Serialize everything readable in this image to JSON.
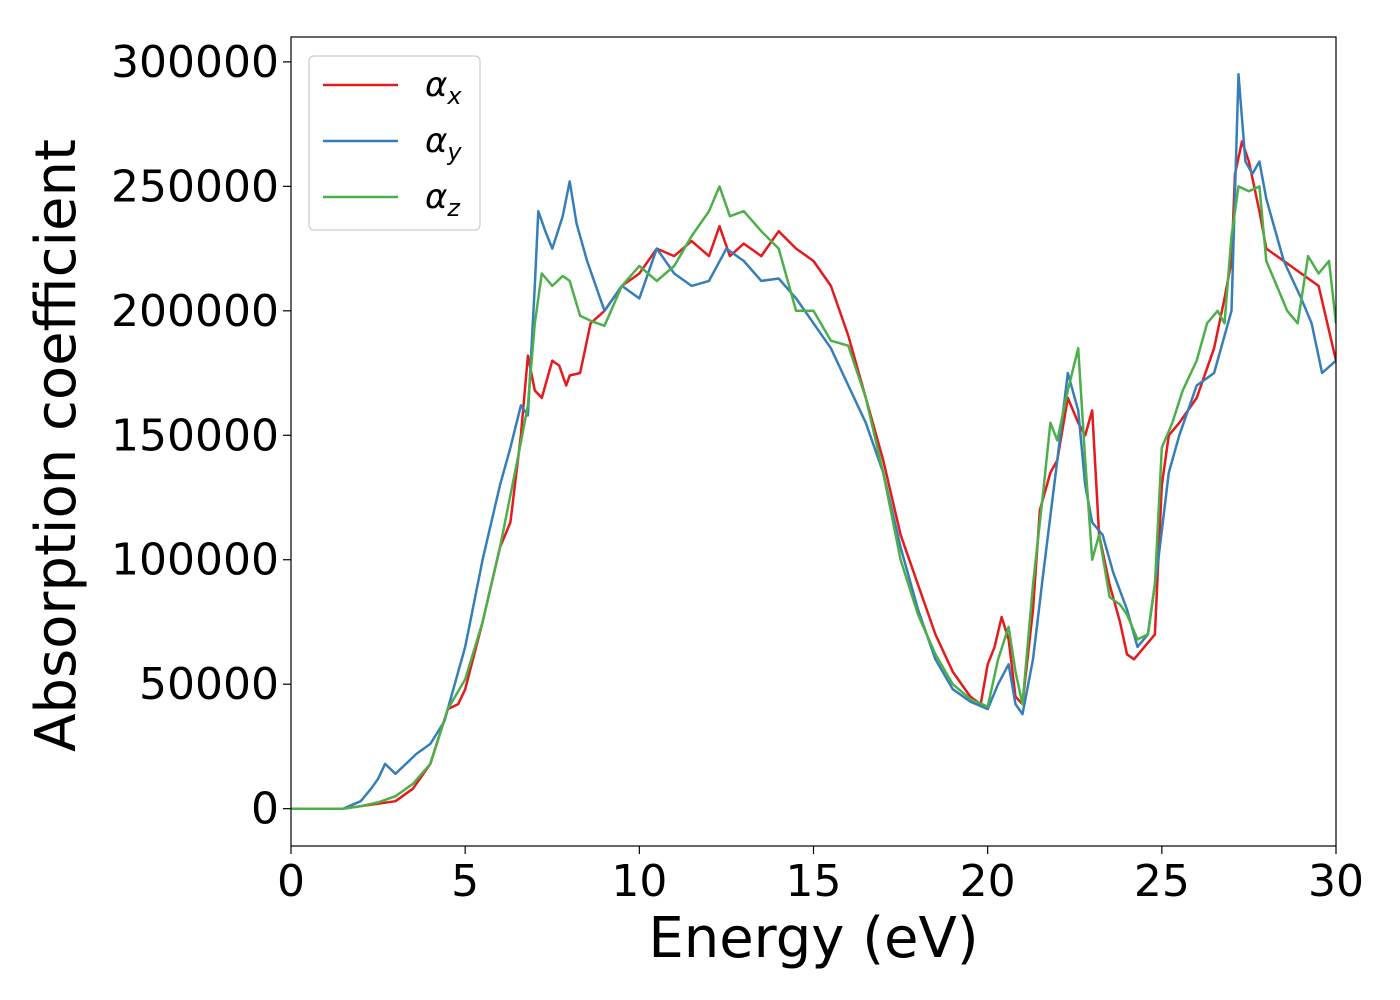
{
  "chart_data": {
    "type": "line",
    "title": "",
    "xlabel": "Energy (eV)",
    "ylabel": "Absorption coefficient",
    "xlim": [
      0,
      30
    ],
    "ylim": [
      -15000,
      310000
    ],
    "xticks": [
      0,
      5,
      10,
      15,
      20,
      25,
      30
    ],
    "xtick_labels": [
      "0",
      "5",
      "10",
      "15",
      "20",
      "25",
      "30"
    ],
    "yticks": [
      0,
      50000,
      100000,
      150000,
      200000,
      250000,
      300000
    ],
    "ytick_labels": [
      "0",
      "50000",
      "100000",
      "150000",
      "200000",
      "250000",
      "300000"
    ],
    "grid": false,
    "legend_position": "top-left",
    "series": [
      {
        "name": "α_x",
        "symbol": "α",
        "subscript": "x",
        "color": "#e41a1c",
        "points": [
          [
            0,
            0
          ],
          [
            1.5,
            0
          ],
          [
            2,
            1000
          ],
          [
            2.5,
            2000
          ],
          [
            3,
            3000
          ],
          [
            3.5,
            8000
          ],
          [
            4,
            18000
          ],
          [
            4.5,
            40000
          ],
          [
            4.8,
            42000
          ],
          [
            5,
            48000
          ],
          [
            5.5,
            75000
          ],
          [
            6,
            105000
          ],
          [
            6.3,
            115000
          ],
          [
            6.6,
            150000
          ],
          [
            6.8,
            182000
          ],
          [
            7,
            168000
          ],
          [
            7.2,
            165000
          ],
          [
            7.5,
            180000
          ],
          [
            7.7,
            178000
          ],
          [
            7.9,
            170000
          ],
          [
            8,
            174000
          ],
          [
            8.3,
            175000
          ],
          [
            8.6,
            195000
          ],
          [
            9,
            200000
          ],
          [
            9.5,
            210000
          ],
          [
            10,
            215000
          ],
          [
            10.5,
            225000
          ],
          [
            11,
            222000
          ],
          [
            11.5,
            228000
          ],
          [
            12,
            222000
          ],
          [
            12.3,
            234000
          ],
          [
            12.6,
            222000
          ],
          [
            13,
            227000
          ],
          [
            13.5,
            222000
          ],
          [
            14,
            232000
          ],
          [
            14.5,
            225000
          ],
          [
            15,
            220000
          ],
          [
            15.5,
            210000
          ],
          [
            16,
            190000
          ],
          [
            16.5,
            165000
          ],
          [
            17,
            140000
          ],
          [
            17.5,
            110000
          ],
          [
            18,
            90000
          ],
          [
            18.5,
            70000
          ],
          [
            19,
            55000
          ],
          [
            19.5,
            45000
          ],
          [
            19.8,
            42000
          ],
          [
            20,
            58000
          ],
          [
            20.2,
            65000
          ],
          [
            20.4,
            77000
          ],
          [
            20.6,
            68000
          ],
          [
            20.8,
            45000
          ],
          [
            21,
            42000
          ],
          [
            21.3,
            80000
          ],
          [
            21.5,
            120000
          ],
          [
            21.8,
            135000
          ],
          [
            22,
            140000
          ],
          [
            22.3,
            165000
          ],
          [
            22.6,
            155000
          ],
          [
            22.8,
            150000
          ],
          [
            23,
            160000
          ],
          [
            23.2,
            110000
          ],
          [
            23.5,
            90000
          ],
          [
            23.8,
            75000
          ],
          [
            24,
            62000
          ],
          [
            24.2,
            60000
          ],
          [
            24.5,
            65000
          ],
          [
            24.8,
            70000
          ],
          [
            25,
            130000
          ],
          [
            25.2,
            150000
          ],
          [
            25.5,
            155000
          ],
          [
            26,
            165000
          ],
          [
            26.5,
            185000
          ],
          [
            26.8,
            205000
          ],
          [
            27,
            220000
          ],
          [
            27.1,
            255000
          ],
          [
            27.3,
            268000
          ],
          [
            27.5,
            260000
          ],
          [
            27.8,
            240000
          ],
          [
            28,
            225000
          ],
          [
            28.5,
            220000
          ],
          [
            29,
            215000
          ],
          [
            29.5,
            210000
          ],
          [
            30,
            180000
          ]
        ]
      },
      {
        "name": "α_y",
        "symbol": "α",
        "subscript": "y",
        "color": "#377eb8",
        "points": [
          [
            0,
            0
          ],
          [
            1.5,
            0
          ],
          [
            2,
            3000
          ],
          [
            2.3,
            8000
          ],
          [
            2.5,
            12000
          ],
          [
            2.7,
            18000
          ],
          [
            3,
            14000
          ],
          [
            3.3,
            18000
          ],
          [
            3.6,
            22000
          ],
          [
            4,
            26000
          ],
          [
            4.4,
            35000
          ],
          [
            4.8,
            55000
          ],
          [
            5,
            65000
          ],
          [
            5.5,
            100000
          ],
          [
            6,
            130000
          ],
          [
            6.3,
            145000
          ],
          [
            6.6,
            162000
          ],
          [
            6.8,
            158000
          ],
          [
            7,
            210000
          ],
          [
            7.1,
            240000
          ],
          [
            7.3,
            232000
          ],
          [
            7.5,
            225000
          ],
          [
            7.8,
            238000
          ],
          [
            8,
            252000
          ],
          [
            8.2,
            235000
          ],
          [
            8.5,
            220000
          ],
          [
            9,
            200000
          ],
          [
            9.5,
            210000
          ],
          [
            10,
            205000
          ],
          [
            10.5,
            225000
          ],
          [
            11,
            215000
          ],
          [
            11.5,
            210000
          ],
          [
            12,
            212000
          ],
          [
            12.5,
            225000
          ],
          [
            13,
            220000
          ],
          [
            13.5,
            212000
          ],
          [
            14,
            213000
          ],
          [
            14.5,
            205000
          ],
          [
            15,
            195000
          ],
          [
            15.5,
            185000
          ],
          [
            16,
            170000
          ],
          [
            16.5,
            155000
          ],
          [
            17,
            135000
          ],
          [
            17.5,
            105000
          ],
          [
            18,
            80000
          ],
          [
            18.5,
            60000
          ],
          [
            19,
            48000
          ],
          [
            19.5,
            43000
          ],
          [
            20,
            40000
          ],
          [
            20.3,
            50000
          ],
          [
            20.6,
            58000
          ],
          [
            20.8,
            42000
          ],
          [
            21,
            38000
          ],
          [
            21.3,
            60000
          ],
          [
            21.6,
            95000
          ],
          [
            22,
            140000
          ],
          [
            22.3,
            175000
          ],
          [
            22.6,
            160000
          ],
          [
            22.8,
            130000
          ],
          [
            23,
            115000
          ],
          [
            23.3,
            110000
          ],
          [
            23.6,
            95000
          ],
          [
            24,
            80000
          ],
          [
            24.3,
            65000
          ],
          [
            24.6,
            70000
          ],
          [
            24.9,
            100000
          ],
          [
            25.2,
            135000
          ],
          [
            25.5,
            150000
          ],
          [
            26,
            170000
          ],
          [
            26.5,
            175000
          ],
          [
            27,
            200000
          ],
          [
            27.2,
            295000
          ],
          [
            27.4,
            260000
          ],
          [
            27.6,
            255000
          ],
          [
            27.8,
            260000
          ],
          [
            28,
            245000
          ],
          [
            28.5,
            220000
          ],
          [
            29,
            205000
          ],
          [
            29.3,
            195000
          ],
          [
            29.6,
            175000
          ],
          [
            30,
            180000
          ]
        ]
      },
      {
        "name": "α_z",
        "symbol": "α",
        "subscript": "z",
        "color": "#4daf4a",
        "points": [
          [
            0,
            0
          ],
          [
            1.5,
            0
          ],
          [
            2,
            1000
          ],
          [
            2.5,
            2500
          ],
          [
            3,
            5000
          ],
          [
            3.5,
            10000
          ],
          [
            4,
            18000
          ],
          [
            4.5,
            40000
          ],
          [
            5,
            52000
          ],
          [
            5.5,
            75000
          ],
          [
            6,
            105000
          ],
          [
            6.5,
            140000
          ],
          [
            6.8,
            162000
          ],
          [
            7,
            195000
          ],
          [
            7.2,
            215000
          ],
          [
            7.5,
            210000
          ],
          [
            7.8,
            214000
          ],
          [
            8,
            212000
          ],
          [
            8.3,
            198000
          ],
          [
            8.6,
            196000
          ],
          [
            9,
            194000
          ],
          [
            9.5,
            210000
          ],
          [
            10,
            218000
          ],
          [
            10.5,
            212000
          ],
          [
            11,
            218000
          ],
          [
            11.5,
            230000
          ],
          [
            12,
            240000
          ],
          [
            12.3,
            250000
          ],
          [
            12.6,
            238000
          ],
          [
            13,
            240000
          ],
          [
            13.5,
            232000
          ],
          [
            14,
            225000
          ],
          [
            14.5,
            200000
          ],
          [
            15,
            200000
          ],
          [
            15.5,
            188000
          ],
          [
            16,
            186000
          ],
          [
            16.5,
            165000
          ],
          [
            17,
            135000
          ],
          [
            17.5,
            100000
          ],
          [
            18,
            78000
          ],
          [
            18.5,
            62000
          ],
          [
            19,
            50000
          ],
          [
            19.5,
            44000
          ],
          [
            20,
            41000
          ],
          [
            20.3,
            60000
          ],
          [
            20.6,
            73000
          ],
          [
            20.8,
            55000
          ],
          [
            21,
            42000
          ],
          [
            21.3,
            90000
          ],
          [
            21.6,
            128000
          ],
          [
            21.8,
            155000
          ],
          [
            22,
            148000
          ],
          [
            22.3,
            168000
          ],
          [
            22.6,
            185000
          ],
          [
            22.8,
            140000
          ],
          [
            23,
            100000
          ],
          [
            23.2,
            110000
          ],
          [
            23.5,
            85000
          ],
          [
            23.8,
            82000
          ],
          [
            24,
            78000
          ],
          [
            24.3,
            68000
          ],
          [
            24.6,
            70000
          ],
          [
            24.8,
            90000
          ],
          [
            25,
            145000
          ],
          [
            25.3,
            155000
          ],
          [
            25.6,
            168000
          ],
          [
            26,
            180000
          ],
          [
            26.3,
            195000
          ],
          [
            26.6,
            200000
          ],
          [
            26.8,
            195000
          ],
          [
            27,
            230000
          ],
          [
            27.2,
            250000
          ],
          [
            27.5,
            248000
          ],
          [
            27.8,
            250000
          ],
          [
            28,
            220000
          ],
          [
            28.3,
            210000
          ],
          [
            28.6,
            200000
          ],
          [
            28.9,
            195000
          ],
          [
            29.2,
            222000
          ],
          [
            29.5,
            215000
          ],
          [
            29.8,
            220000
          ],
          [
            30,
            195000
          ]
        ]
      }
    ]
  }
}
